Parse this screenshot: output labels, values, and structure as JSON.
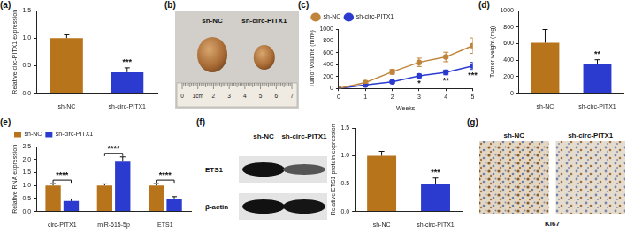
{
  "chart_data": [
    {
      "panel": "(a)",
      "type": "bar",
      "y_label": "Relative circ-PITX1 expression",
      "categories": [
        "sh-NC",
        "sh-circ-PITX1"
      ],
      "values": [
        1.0,
        0.38
      ],
      "errors": [
        0.06,
        0.08
      ],
      "colors": [
        "#b8741a",
        "#2b3bd0"
      ],
      "ylim": [
        0,
        1.5
      ],
      "yticks": [
        {
          "value": 0,
          "label": "0.0"
        },
        0.5,
        {
          "value": 1,
          "label": "1.0"
        },
        1.5
      ],
      "grid": false,
      "annotations": [
        {
          "category": "sh-circ-PITX1",
          "text": "***"
        }
      ]
    },
    {
      "panel": "(c)",
      "type": "line",
      "y_label": "Tumor volume (mm³)",
      "x_label": "Weeks",
      "x": [
        0,
        1,
        2,
        3,
        4,
        5
      ],
      "series": [
        {
          "name": "sh-NC",
          "color": "#c0843a",
          "marker": "circle",
          "values": [
            0,
            100,
            280,
            440,
            530,
            720
          ],
          "errors": [
            0,
            20,
            40,
            70,
            80,
            130
          ]
        },
        {
          "name": "sh-circ-PITX1",
          "color": "#2b3bd0",
          "marker": "circle",
          "values": [
            0,
            60,
            110,
            210,
            270,
            380
          ],
          "errors": [
            0,
            10,
            20,
            30,
            40,
            60
          ]
        }
      ],
      "xlim": [
        0,
        5
      ],
      "xticks": [
        0,
        1,
        2,
        3,
        4,
        5
      ],
      "ylim": [
        0,
        1000
      ],
      "yticks": [
        0,
        200,
        400,
        600,
        800,
        1000
      ],
      "grid": false,
      "legend": "upper left",
      "annotations": [
        {
          "x": 3,
          "text": "*"
        },
        {
          "x": 4,
          "text": "**"
        },
        {
          "x": 5,
          "text": "***"
        }
      ]
    },
    {
      "panel": "(d)",
      "type": "bar",
      "y_label": "Tumor weight (mg)",
      "categories": [
        "sh-NC",
        "sh-circ-PITX1"
      ],
      "values": [
        610,
        355
      ],
      "errors": [
        160,
        50
      ],
      "colors": [
        "#b8741a",
        "#2b3bd0"
      ],
      "ylim": [
        0,
        1000
      ],
      "yticks": [
        0,
        200,
        400,
        600,
        800,
        1000
      ],
      "grid": false,
      "annotations": [
        {
          "category": "sh-circ-PITX1",
          "text": "**"
        }
      ]
    },
    {
      "panel": "(e)",
      "type": "bar",
      "y_label": "Relative RNA expression",
      "categories": [
        "circ-PITX1",
        "miR-615-5p",
        "ETS1"
      ],
      "series": [
        {
          "name": "sh-NC",
          "color": "#b8741a",
          "values": [
            1.0,
            1.0,
            1.0
          ],
          "errors": [
            0.07,
            0.06,
            0.07
          ]
        },
        {
          "name": "sh-circ-PITX1",
          "color": "#2b3bd0",
          "values": [
            0.4,
            1.95,
            0.5
          ],
          "errors": [
            0.08,
            0.15,
            0.07
          ]
        }
      ],
      "ylim": [
        0,
        2.5
      ],
      "yticks": [
        {
          "value": 0,
          "label": "0.0"
        },
        0.5,
        {
          "value": 1,
          "label": "1.0"
        },
        1.5,
        {
          "value": 2,
          "label": "2.0"
        },
        2.5
      ],
      "grid": false,
      "legend": "upper left",
      "annotations": [
        {
          "category": "circ-PITX1",
          "text": "****"
        },
        {
          "category": "miR-615-5p",
          "text": "****"
        },
        {
          "category": "ETS1",
          "text": "****"
        }
      ]
    },
    {
      "type": "bar",
      "y_label": "Relative ETS1 protein expression",
      "categories": [
        "sh-NC",
        "sh-circ-PITX1"
      ],
      "values": [
        1.0,
        0.5
      ],
      "errors": [
        0.08,
        0.1
      ],
      "colors": [
        "#b8741a",
        "#2b3bd0"
      ],
      "ylim": [
        0,
        1.5
      ],
      "yticks": [
        {
          "value": 0,
          "label": "0.0"
        },
        0.5,
        {
          "value": 1,
          "label": "1.0"
        },
        1.5
      ],
      "grid": false,
      "annotations": [
        {
          "category": "sh-circ-PITX1",
          "text": "***"
        }
      ]
    }
  ],
  "images": [
    {
      "panel": "(b)",
      "type": "photo",
      "labels": [
        "sh-NC",
        "sh-circ-PITX1"
      ],
      "ruler": [
        "0",
        "1cm",
        "2",
        "3",
        "4",
        "5",
        "6",
        "7"
      ]
    },
    {
      "panel": "(f)",
      "type": "blot",
      "columns": [
        "sh-NC",
        "sh-circ-PITX1"
      ],
      "rows": [
        "ETS1",
        "β-actin"
      ]
    },
    {
      "panel": "(g)",
      "type": "ihc",
      "columns": [
        "sh-NC",
        "sh-circ-PITX1"
      ],
      "caption": "Ki67"
    }
  ]
}
